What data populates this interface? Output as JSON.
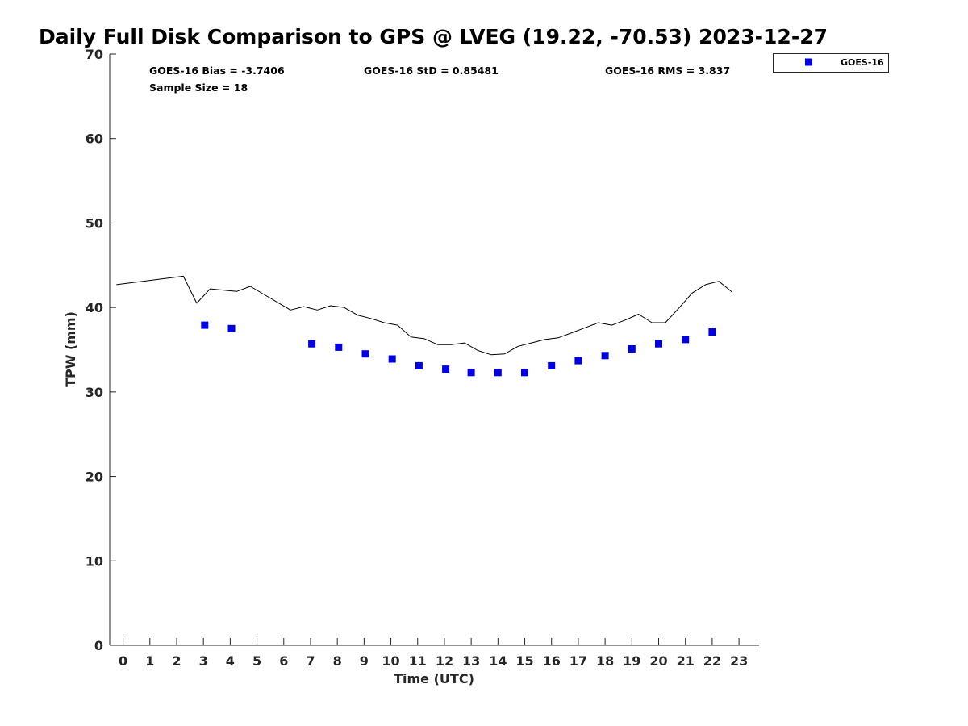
{
  "chart_data": {
    "type": "scatter",
    "title": "Daily Full Disk Comparison to GPS @ LVEG (19.22, -70.53) 2023-12-27",
    "xlabel": "Time (UTC)",
    "ylabel": "TPW (mm)",
    "xlim": [
      -0.5,
      23.75
    ],
    "ylim": [
      0,
      70
    ],
    "x_ticks": [
      0,
      1,
      2,
      3,
      4,
      5,
      6,
      7,
      8,
      9,
      10,
      11,
      12,
      13,
      14,
      15,
      16,
      17,
      18,
      19,
      20,
      21,
      22,
      23
    ],
    "y_ticks": [
      0,
      10,
      20,
      30,
      40,
      50,
      60,
      70
    ],
    "grid": false,
    "legend_position": "top-right, outside plot",
    "stats": {
      "bias": "GOES-16 Bias = -3.7406",
      "std": "GOES-16 StD = 0.85481",
      "rms": "GOES-16 RMS = 3.837",
      "sample": "Sample Size = 18"
    },
    "series": [
      {
        "name": "GOES-16",
        "style": "square markers",
        "color": "#0000e6",
        "x": [
          3.05,
          4.05,
          7.05,
          8.05,
          9.05,
          10.05,
          11.05,
          12.05,
          13.0,
          14.0,
          15.0,
          16.0,
          17.0,
          18.0,
          19.0,
          20.0,
          21.0,
          22.0
        ],
        "y": [
          37.9,
          37.5,
          35.7,
          35.3,
          34.5,
          33.9,
          33.1,
          32.7,
          32.3,
          32.3,
          32.3,
          33.1,
          33.7,
          34.3,
          35.1,
          35.7,
          36.2,
          37.1
        ]
      },
      {
        "style": "line",
        "color": "#000000",
        "x": [
          -0.25,
          2.25,
          2.75,
          3.25,
          4.25,
          4.75,
          6.25,
          6.75,
          7.25,
          7.75,
          8.25,
          8.75,
          9.25,
          9.75,
          10.25,
          10.75,
          11.25,
          11.75,
          12.25,
          12.75,
          13.25,
          13.75,
          14.25,
          14.75,
          15.25,
          15.75,
          16.25,
          16.75,
          17.25,
          17.75,
          18.25,
          18.75,
          19.25,
          19.75,
          20.25,
          20.75,
          21.25,
          21.75,
          22.25,
          22.75
        ],
        "y": [
          42.7,
          43.7,
          40.5,
          42.2,
          41.9,
          42.5,
          39.7,
          40.1,
          39.7,
          40.2,
          40.0,
          39.1,
          38.7,
          38.2,
          37.9,
          36.5,
          36.3,
          35.6,
          35.6,
          35.8,
          34.9,
          34.4,
          34.5,
          35.4,
          35.8,
          36.2,
          36.4,
          37.0,
          37.6,
          38.2,
          37.9,
          38.5,
          39.2,
          38.2,
          38.2,
          39.9,
          41.7,
          42.7,
          43.1,
          41.8
        ]
      }
    ]
  }
}
